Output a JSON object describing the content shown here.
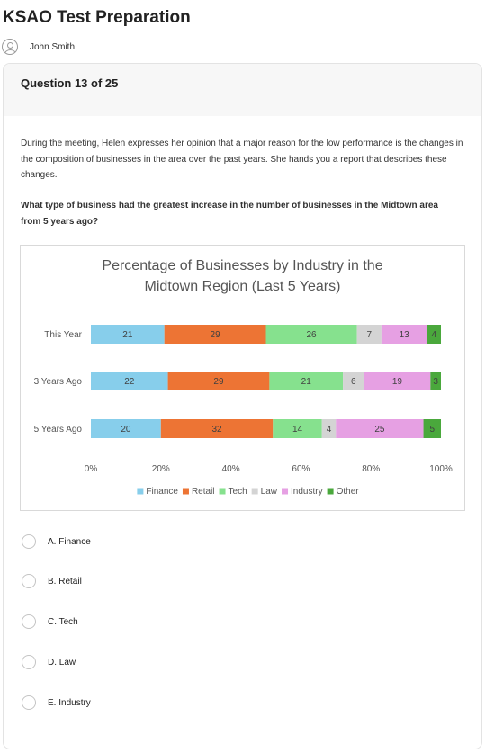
{
  "app": {
    "title": "KSAO Test Preparation"
  },
  "user": {
    "name": "John Smith",
    "icon": "user-circle-icon"
  },
  "question": {
    "number_label": "Question 13 of 25",
    "passage": "During the meeting, Helen expresses her opinion that a major reason for the low performance is the changes in the composition of businesses in the area over the past years. She hands you a report that describes these changes.",
    "prompt": "What type of business had the greatest increase in the number of businesses in the Midtown area from 5 years ago?"
  },
  "chart_data": {
    "type": "bar",
    "orientation": "horizontal",
    "stacked": true,
    "percent_stacked": true,
    "title_lines": [
      "Percentage of Businesses by Industry in the",
      "Midtown Region (Last 5 Years)"
    ],
    "categories": [
      "This Year",
      "3 Years Ago",
      "5 Years Ago"
    ],
    "series": [
      {
        "name": "Finance",
        "color": "#87ceeb",
        "values": [
          21,
          22,
          20
        ]
      },
      {
        "name": "Retail",
        "color": "#ed7434",
        "values": [
          29,
          29,
          32
        ]
      },
      {
        "name": "Tech",
        "color": "#86e18e",
        "values": [
          26,
          21,
          14
        ]
      },
      {
        "name": "Law",
        "color": "#d4d4d4",
        "values": [
          7,
          6,
          4
        ]
      },
      {
        "name": "Industry",
        "color": "#e6a0e3",
        "values": [
          13,
          19,
          25
        ]
      },
      {
        "name": "Other",
        "color": "#4aa83c",
        "values": [
          4,
          3,
          5
        ]
      }
    ],
    "x_ticks": [
      "0%",
      "20%",
      "40%",
      "60%",
      "80%",
      "100%"
    ],
    "xlim": [
      0,
      100
    ],
    "legend_position": "bottom",
    "grid": false,
    "data_labels": true
  },
  "options": [
    {
      "letter": "A.",
      "text": "Finance",
      "label": "A. Finance"
    },
    {
      "letter": "B.",
      "text": "Retail",
      "label": "B. Retail"
    },
    {
      "letter": "C.",
      "text": "Tech",
      "label": "C. Tech"
    },
    {
      "letter": "D.",
      "text": "Law",
      "label": "D. Law"
    },
    {
      "letter": "E.",
      "text": "Industry",
      "label": "E. Industry"
    }
  ]
}
